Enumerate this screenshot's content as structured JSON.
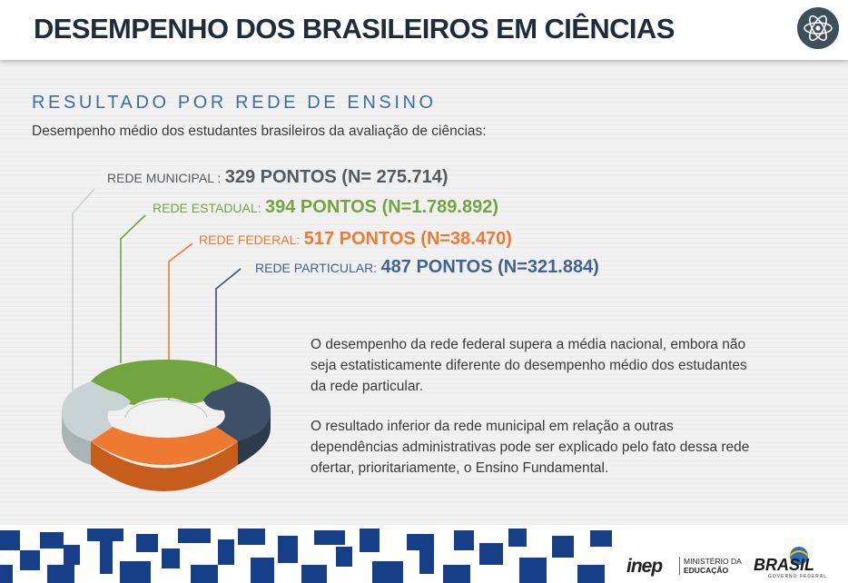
{
  "header": {
    "title": "DESEMPENHO DOS BRASILEIROS EM CIÊNCIAS",
    "badge_icon": "atom-icon"
  },
  "section": {
    "heading": "RESULTADO POR REDE DE ENSINO",
    "subtitle": "Desempenho médio dos estudantes brasileiros da avaliação de ciências:"
  },
  "networks": [
    {
      "label": "REDE MUNICIPAL :",
      "value": "329 PONTOS (N= 275.714)",
      "color": "#555a5f"
    },
    {
      "label": "REDE ESTADUAL:",
      "value": "394 PONTOS (N=1.789.892)",
      "color": "#72a53f"
    },
    {
      "label": "REDE FEDERAL:",
      "value": "517 PONTOS (N=38.470)",
      "color": "#ed7a30"
    },
    {
      "label": "REDE PARTICULAR:",
      "value": "487 PONTOS (N=321.884)",
      "color": "#3f6394"
    }
  ],
  "colors": {
    "municipal_piece": "#c9d3d3",
    "estadual_piece": "#72a53f",
    "federal_piece": "#ed7a30",
    "particular_piece": "#3d5067",
    "title": "#1e2d3c",
    "heading": "#3c6ea1",
    "footer_pattern": "#163f87"
  },
  "paragraphs": [
    "O desempenho da rede federal supera a média nacional, embora não seja estatisticamente diferente do desempenho médio dos estudantes da rede particular.",
    "O resultado inferior da rede municipal em relação a outras dependências administrativas pode ser explicado pelo fato dessa rede ofertar, prioritariamente, o Ensino Fundamental."
  ],
  "footer": {
    "inep": "inep",
    "mec_line1": "MINISTÉRIO DA",
    "mec_line2": "EDUCAÇÃO",
    "brasil": "BRASIL",
    "brasil_sub": "GOVERNO FEDERAL"
  }
}
